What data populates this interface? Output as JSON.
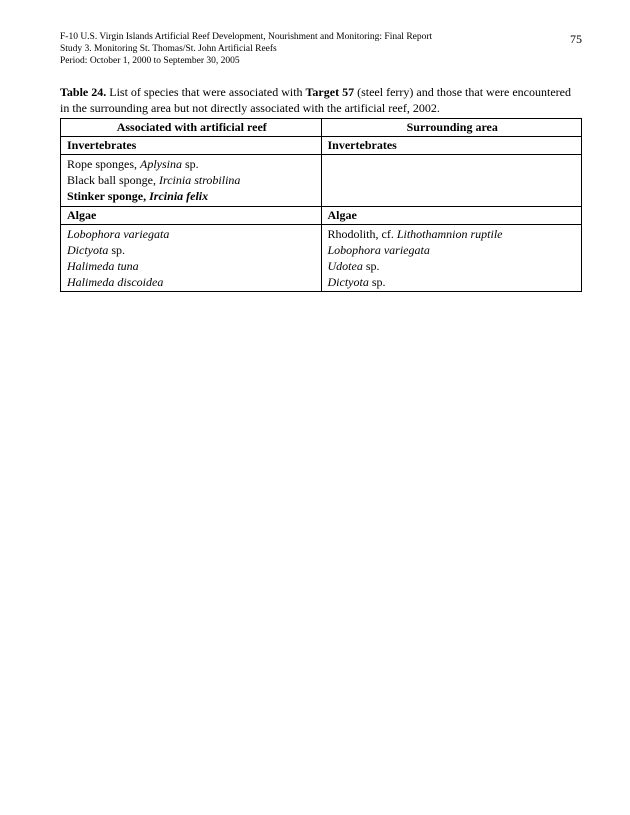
{
  "header": {
    "line1": "F-10 U.S. Virgin Islands Artificial Reef Development, Nourishment and Monitoring: Final Report",
    "line2": "Study 3.  Monitoring St. Thomas/St. John Artificial Reefs",
    "line3": "Period:  October 1, 2000 to September 30, 2005",
    "page_number": "75"
  },
  "caption": {
    "table_label": "Table 24.",
    "text_before_target": "  List of species that were associated with ",
    "target_label": "Target 57",
    "text_after_target": " (steel ferry) and those that were encountered in the surrounding area but not directly associated with the artificial reef, 2002."
  },
  "table": {
    "header_left": "Associated with artificial reef",
    "header_right": "Surrounding area",
    "sections": [
      {
        "left_header": "Invertebrates",
        "right_header": "Invertebrates",
        "left_rows": [
          {
            "plain": "Rope sponges, ",
            "italic": "Aplysina",
            "suffix": " sp."
          },
          {
            "plain": "Black ball sponge, ",
            "italic": "Ircinia strobilina",
            "suffix": ""
          },
          {
            "bold_plain": "Stinker sponge, ",
            "bold_italic": "Ircinia felix"
          }
        ],
        "right_rows": []
      },
      {
        "left_header": "Algae",
        "right_header": "Algae",
        "left_rows": [
          {
            "italic": "Lobophora variegata"
          },
          {
            "italic": "Dictyota",
            "suffix": " sp."
          },
          {
            "italic": "Halimeda tuna"
          },
          {
            "italic": "Halimeda discoidea"
          }
        ],
        "right_rows": [
          {
            "plain": "Rhodolith, cf. ",
            "italic": "Lithothamnion ruptile"
          },
          {
            "italic": "Lobophora variegata"
          },
          {
            "italic": "Udotea",
            "suffix": " sp."
          },
          {
            "italic": "Dictyota",
            "suffix": " sp."
          }
        ]
      }
    ]
  },
  "style": {
    "text_color": "#000000",
    "background_color": "#ffffff",
    "border_color": "#000000",
    "header_fontsize": 9.5,
    "body_fontsize": 12
  }
}
